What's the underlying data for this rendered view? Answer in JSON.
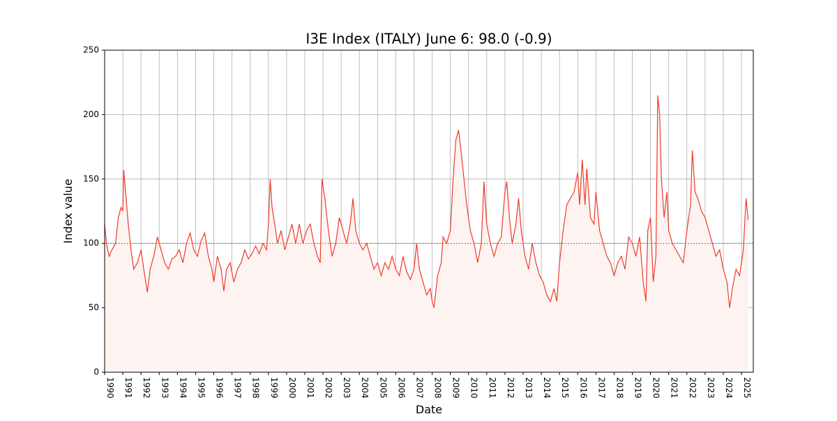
{
  "chart_data": {
    "type": "line",
    "title": "I3E Index (ITALY) June 6: 98.0 (-0.9)",
    "xlabel": "Date",
    "ylabel": "Index value",
    "color": "#f03a2a",
    "fill_color": "#fdf3f1",
    "grid": true,
    "reference_line": 100,
    "xlim": [
      1990,
      2025.65
    ],
    "ylim": [
      0,
      250
    ],
    "xticks": [
      1990,
      1991,
      1992,
      1993,
      1994,
      1995,
      1996,
      1997,
      1998,
      1999,
      2000,
      2001,
      2002,
      2003,
      2004,
      2005,
      2006,
      2007,
      2008,
      2009,
      2010,
      2011,
      2012,
      2013,
      2014,
      2015,
      2016,
      2017,
      2018,
      2019,
      2020,
      2021,
      2022,
      2023,
      2024,
      2025
    ],
    "yticks": [
      0,
      50,
      100,
      150,
      200,
      250
    ],
    "series": [
      {
        "name": "I3E Index",
        "color": "#f03a2a",
        "x": [
          1990.0,
          1990.1,
          1990.25,
          1990.4,
          1990.6,
          1990.75,
          1990.9,
          1991.0,
          1991.05,
          1991.15,
          1991.3,
          1991.45,
          1991.6,
          1991.8,
          1992.0,
          1992.15,
          1992.35,
          1992.5,
          1992.7,
          1992.9,
          1993.1,
          1993.3,
          1993.5,
          1993.7,
          1993.9,
          1994.1,
          1994.3,
          1994.5,
          1994.7,
          1994.9,
          1995.1,
          1995.3,
          1995.5,
          1995.7,
          1995.9,
          1996.0,
          1996.2,
          1996.4,
          1996.55,
          1996.7,
          1996.9,
          1997.1,
          1997.3,
          1997.5,
          1997.7,
          1997.9,
          1998.1,
          1998.3,
          1998.5,
          1998.7,
          1998.9,
          1999.0,
          1999.1,
          1999.2,
          1999.35,
          1999.5,
          1999.7,
          1999.9,
          2000.1,
          2000.3,
          2000.5,
          2000.7,
          2000.9,
          2001.1,
          2001.3,
          2001.5,
          2001.7,
          2001.85,
          2001.95,
          2002.1,
          2002.3,
          2002.5,
          2002.7,
          2002.9,
          2003.1,
          2003.3,
          2003.5,
          2003.65,
          2003.8,
          2004.0,
          2004.2,
          2004.4,
          2004.6,
          2004.8,
          2005.0,
          2005.2,
          2005.4,
          2005.6,
          2005.8,
          2006.0,
          2006.2,
          2006.4,
          2006.6,
          2006.8,
          2007.0,
          2007.15,
          2007.3,
          2007.5,
          2007.7,
          2007.9,
          2008.0,
          2008.1,
          2008.3,
          2008.5,
          2008.6,
          2008.8,
          2009.0,
          2009.15,
          2009.3,
          2009.45,
          2009.6,
          2009.75,
          2009.9,
          2010.1,
          2010.3,
          2010.5,
          2010.7,
          2010.85,
          2011.0,
          2011.2,
          2011.4,
          2011.6,
          2011.8,
          2012.0,
          2012.1,
          2012.25,
          2012.4,
          2012.6,
          2012.75,
          2012.9,
          2013.1,
          2013.3,
          2013.5,
          2013.7,
          2013.9,
          2014.1,
          2014.3,
          2014.5,
          2014.7,
          2014.85,
          2015.0,
          2015.2,
          2015.4,
          2015.6,
          2015.8,
          2016.0,
          2016.1,
          2016.25,
          2016.4,
          2016.5,
          2016.7,
          2016.9,
          2017.0,
          2017.2,
          2017.4,
          2017.6,
          2017.8,
          2018.0,
          2018.2,
          2018.4,
          2018.6,
          2018.8,
          2019.0,
          2019.2,
          2019.4,
          2019.6,
          2019.75,
          2019.85,
          2020.0,
          2020.15,
          2020.3,
          2020.4,
          2020.5,
          2020.6,
          2020.75,
          2020.9,
          2021.0,
          2021.2,
          2021.4,
          2021.6,
          2021.8,
          2022.0,
          2022.2,
          2022.3,
          2022.45,
          2022.6,
          2022.8,
          2023.0,
          2023.2,
          2023.4,
          2023.6,
          2023.8,
          2024.0,
          2024.2,
          2024.35,
          2024.5,
          2024.7,
          2024.9,
          2025.1,
          2025.25,
          2025.37
        ],
        "values": [
          115,
          100,
          90,
          95,
          100,
          120,
          128,
          125,
          157,
          140,
          115,
          95,
          80,
          85,
          95,
          80,
          62,
          80,
          90,
          105,
          95,
          85,
          80,
          88,
          90,
          95,
          85,
          100,
          108,
          95,
          90,
          102,
          108,
          90,
          80,
          70,
          90,
          80,
          63,
          80,
          85,
          70,
          80,
          85,
          95,
          88,
          92,
          98,
          92,
          100,
          95,
          115,
          150,
          128,
          115,
          100,
          110,
          95,
          105,
          115,
          100,
          115,
          100,
          110,
          115,
          100,
          90,
          85,
          150,
          135,
          110,
          90,
          100,
          120,
          110,
          100,
          115,
          135,
          110,
          100,
          95,
          100,
          90,
          80,
          85,
          75,
          85,
          80,
          90,
          80,
          75,
          90,
          78,
          72,
          80,
          100,
          80,
          70,
          60,
          65,
          55,
          50,
          75,
          85,
          105,
          100,
          110,
          150,
          180,
          188,
          170,
          150,
          130,
          110,
          100,
          85,
          100,
          148,
          115,
          100,
          90,
          100,
          105,
          140,
          148,
          120,
          100,
          115,
          135,
          110,
          90,
          80,
          100,
          85,
          75,
          70,
          60,
          55,
          65,
          55,
          85,
          110,
          130,
          135,
          140,
          155,
          130,
          165,
          130,
          158,
          120,
          115,
          140,
          110,
          100,
          90,
          85,
          75,
          85,
          90,
          80,
          105,
          100,
          90,
          105,
          70,
          55,
          110,
          120,
          70,
          90,
          215,
          200,
          150,
          120,
          140,
          110,
          100,
          95,
          90,
          85,
          110,
          130,
          172,
          140,
          135,
          125,
          120,
          110,
          100,
          90,
          95,
          80,
          70,
          50,
          65,
          80,
          75,
          95,
          135,
          118
        ]
      }
    ]
  }
}
